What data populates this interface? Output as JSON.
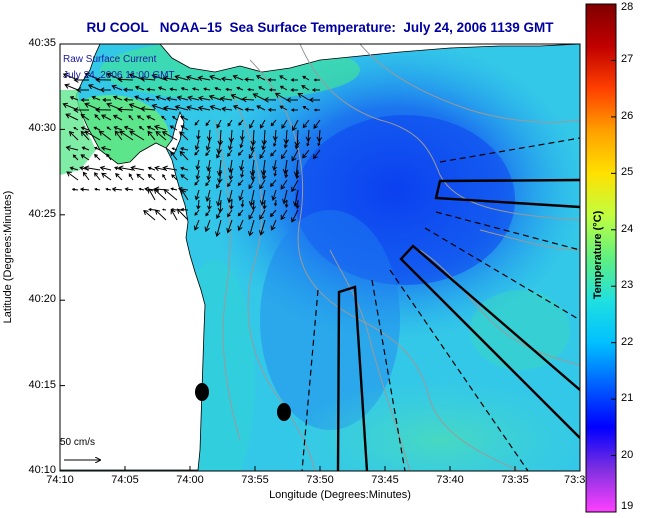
{
  "title": "RU COOL   NOAA–15  Sea Surface Temperature:  July 24, 2006 1139 GMT",
  "overlay": {
    "current_line1": "Raw Surface Current",
    "current_line2": "July 24, 2006 11:00 GMT",
    "scale_label": "50 cm/s"
  },
  "axes": {
    "ylabel": "Latitude (Degrees:Minutes)",
    "xlabel": "Longitude (Degrees:Minutes)",
    "y_ticks": [
      "40:35",
      "40:30",
      "40:25",
      "40:20",
      "40:15",
      "40:10"
    ],
    "x_ticks": [
      "74:10",
      "74:05",
      "74:00",
      "73:55",
      "73:50",
      "73:45",
      "73:40",
      "73:35",
      "73:3"
    ]
  },
  "colorbar": {
    "label": "Temperature (°C)",
    "ticks": [
      "28",
      "27",
      "26",
      "25",
      "24",
      "23",
      "22",
      "21",
      "20",
      "19"
    ],
    "stops": [
      "#ff40ff",
      "#8030e0",
      "#0000ff",
      "#0060ff",
      "#00c0ff",
      "#20e0e0",
      "#60f080",
      "#c0ff40",
      "#ffe000",
      "#ffa000",
      "#ff4000",
      "#c00000",
      "#800000"
    ]
  },
  "colors": {
    "land": "#ffffff",
    "sea_warm": "#30d0e0",
    "sea_cool": "#1060f0",
    "sea_nearshore": "#40e0a0",
    "title": "#0000a0",
    "transect": "#000000",
    "bathymetry": "#9a9a9a"
  }
}
